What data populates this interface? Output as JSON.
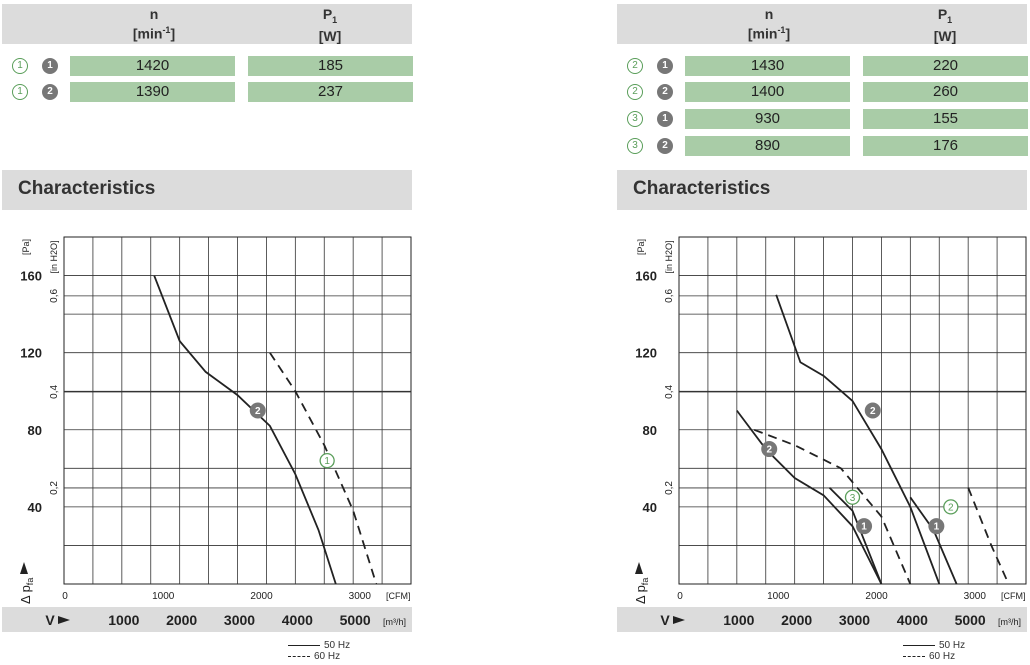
{
  "header": {
    "n_label": "n",
    "n_unit_base": "[min",
    "n_unit_exp": "-1",
    "n_unit_end": "]",
    "p_label": "P",
    "p_sub": "1",
    "p_unit": "[W]"
  },
  "colors": {
    "cell_green": "#a9cca7",
    "header_grey": "#dcdcdc",
    "circle_green": "#5a9e5a",
    "curve": "#222222"
  },
  "left_table": [
    {
      "variant": "1",
      "mode": "1",
      "n": "1420",
      "p": "185"
    },
    {
      "variant": "1",
      "mode": "2",
      "n": "1390",
      "p": "237"
    }
  ],
  "right_table": [
    {
      "variant": "2",
      "mode": "1",
      "n": "1430",
      "p": "220"
    },
    {
      "variant": "2",
      "mode": "2",
      "n": "1400",
      "p": "260"
    },
    {
      "variant": "3",
      "mode": "1",
      "n": "930",
      "p": "155"
    },
    {
      "variant": "3",
      "mode": "2",
      "n": "890",
      "p": "176"
    }
  ],
  "section_title": "Characteristics",
  "legend": {
    "hz50": "50 Hz",
    "hz60": "60 Hz"
  },
  "chart_data": [
    {
      "type": "line",
      "title": "Characteristics",
      "ylabel_pa": "[Pa]",
      "ylabel_inh2o": "[in H2O]",
      "xlabel_cfm": "[CFM]",
      "xlabel_m3h": "[m³/h]",
      "y_axis_label": "Δ p",
      "y_axis_sub": "fa",
      "x_axis_label": "V",
      "y_ticks_pa": [
        40,
        80,
        120,
        160
      ],
      "y_ticks_inh2o": [
        "0,2",
        "0,4",
        "0,6"
      ],
      "x_ticks_cfm": [
        0,
        1000,
        2000,
        3000
      ],
      "x_ticks_m3h": [
        1000,
        2000,
        3000,
        4000,
        5000
      ],
      "xlim_m3h": [
        0,
        6000
      ],
      "ylim_pa": [
        0,
        180
      ],
      "grid": true,
      "series": [
        {
          "name": "2",
          "style": "solid",
          "label_at": [
            3350,
            90
          ],
          "points": [
            [
              1560,
              160
            ],
            [
              2000,
              126
            ],
            [
              2450,
              110
            ],
            [
              3000,
              98
            ],
            [
              3560,
              82
            ],
            [
              4000,
              57
            ],
            [
              4400,
              28
            ],
            [
              4700,
              0
            ]
          ]
        },
        {
          "name": "1",
          "style": "dashed",
          "label_at": [
            4550,
            64
          ],
          "points": [
            [
              3560,
              120
            ],
            [
              4000,
              100
            ],
            [
              4500,
              72
            ],
            [
              5000,
              38
            ],
            [
              5400,
              0
            ]
          ]
        }
      ]
    },
    {
      "type": "line",
      "title": "Characteristics",
      "ylabel_pa": "[Pa]",
      "ylabel_inh2o": "[in H2O]",
      "xlabel_cfm": "[CFM]",
      "xlabel_m3h": "[m³/h]",
      "y_axis_label": "Δ p",
      "y_axis_sub": "fa",
      "x_axis_label": "V",
      "y_ticks_pa": [
        40,
        80,
        120,
        160
      ],
      "y_ticks_inh2o": [
        "0,2",
        "0,4",
        "0,6"
      ],
      "x_ticks_cfm": [
        0,
        1000,
        2000,
        3000
      ],
      "x_ticks_m3h": [
        1000,
        2000,
        3000,
        4000,
        5000
      ],
      "xlim_m3h": [
        0,
        6000
      ],
      "ylim_pa": [
        0,
        180
      ],
      "grid": true,
      "series": [
        {
          "name": "2",
          "style": "solid",
          "label_at": [
            3350,
            90
          ],
          "points": [
            [
              1680,
              150
            ],
            [
              2100,
              115
            ],
            [
              2500,
              108
            ],
            [
              3000,
              95
            ],
            [
              3500,
              70
            ],
            [
              4000,
              40
            ],
            [
              4500,
              0
            ]
          ]
        },
        {
          "name": "2",
          "style": "solid",
          "label_at": [
            1560,
            70
          ],
          "points": [
            [
              1000,
              90
            ],
            [
              1500,
              70
            ],
            [
              2000,
              55
            ],
            [
              2500,
              46
            ],
            [
              3000,
              30
            ],
            [
              3500,
              0
            ]
          ]
        },
        {
          "name": "1",
          "style": "solid",
          "label_at": [
            3200,
            30
          ],
          "points": [
            [
              2600,
              50
            ],
            [
              3000,
              38
            ],
            [
              3500,
              0
            ]
          ]
        },
        {
          "name": "3",
          "style": "dashed",
          "label_at": [
            3000,
            45
          ],
          "points": [
            [
              1300,
              80
            ],
            [
              2000,
              72
            ],
            [
              2800,
              60
            ],
            [
              3500,
              35
            ],
            [
              4000,
              0
            ]
          ]
        },
        {
          "name": "1",
          "style": "solid",
          "label_at": [
            4450,
            30
          ],
          "points": [
            [
              4000,
              45
            ],
            [
              4400,
              28
            ],
            [
              4800,
              0
            ]
          ]
        },
        {
          "name": "2",
          "style": "dashed",
          "label_at": [
            4700,
            40
          ],
          "points": [
            [
              5000,
              50
            ],
            [
              5400,
              20
            ],
            [
              5700,
              0
            ]
          ]
        }
      ]
    }
  ]
}
